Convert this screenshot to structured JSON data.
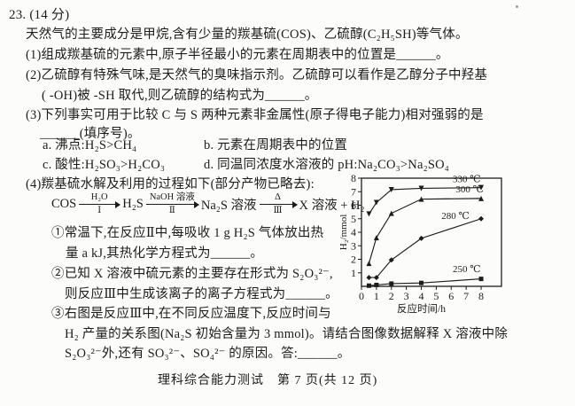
{
  "colors": {
    "ink": "#1c1c1c",
    "paper": "#fcfcfa"
  },
  "header": {
    "number": "23.",
    "score": "(14 分)"
  },
  "body": {
    "intro": "天然气的主要成分是甲烷,含有少量的羰基硫(COS)、乙硫醇(C₂H₅SH)等气体。",
    "q1": "(1)组成羰基硫的元素中,原子半径最小的元素在周期表中的位置是______。",
    "q2_line1": "(2)乙硫醇有特殊气味,是天然气的臭味指示剂。乙硫醇可以看作是乙醇分子中羟基",
    "q2_line2": "( -OH)被 -SH 取代,则乙硫醇的结构式为______。",
    "q3_line1": "(3)下列事实可用于比较 C 与 S 两种元素非金属性(原子得电子能力)相对强弱的是",
    "q3_line2": "______(填序号)。",
    "q3_options": {
      "a": "a. 沸点:H₂S>CH₄",
      "b": "b. 元素在周期表中的位置",
      "c": "c. 酸性:H₂SO₃>H₂CO₃",
      "d": "d. 同温同浓度水溶液的 pH:Na₂CO₃>Na₂SO₄"
    },
    "q4_intro": "(4)羰基硫水解及利用的过程如下(部分产物已略去):",
    "scheme": {
      "start": "COS",
      "step1": {
        "above": "H₂O",
        "below": "Ⅰ"
      },
      "mid1": "H₂S",
      "step2": {
        "above": "NaOH 溶液",
        "below": "Ⅱ"
      },
      "mid2": "Na₂S 溶液",
      "step3": {
        "above": "Δ",
        "below": "Ⅲ"
      },
      "end": "X 溶液 + H₂"
    },
    "q4_sub1_line1": "①常温下,在反应Ⅱ中,每吸收 1 g H₂S 气体放出热",
    "q4_sub1_line2": "量 a kJ,其热化学方程式为______。",
    "q4_sub2_line1": "②已知 X 溶液中硫元素的主要存在形式为 S₂O₃²⁻,",
    "q4_sub2_line2": "则反应Ⅲ中生成该离子的离子方程式为______。",
    "q4_sub3_line1": "③右图是反应Ⅲ中,在不同反应温度下,反应时间与",
    "q4_sub3_line2": "H₂ 产量的关系图(Na₂S 初始含量为 3 mmol)。请结合图像数据解释 X 溶液中除",
    "q4_sub3_line3": "S₂O₃²⁻外,还有 SO₃²⁻、SO₄²⁻ 的原因。答:______。"
  },
  "footer": {
    "text": "理科综合能力测试　第 7 页(共 12 页)"
  },
  "chart_data": {
    "type": "line",
    "title": "",
    "xlabel": "反应时间/h",
    "ylabel": "H₂/mmol",
    "x": [
      0.5,
      1,
      2,
      4,
      8
    ],
    "series": [
      {
        "name": "330 ℃",
        "marker": "triangle-down",
        "values": [
          5.35,
          6.2,
          7.15,
          7.25,
          7.3
        ],
        "label_at": [
          6.1,
          7.7
        ]
      },
      {
        "name": "300 ℃",
        "marker": "triangle-up",
        "values": [
          1.7,
          3.6,
          5.4,
          6.45,
          6.5
        ],
        "label_at": [
          6.3,
          6.95
        ]
      },
      {
        "name": "280 ℃",
        "marker": "diamond",
        "values": [
          0.65,
          0.65,
          1.95,
          3.55,
          5.0
        ],
        "label_at": [
          5.35,
          5.0
        ]
      },
      {
        "name": "250 ℃",
        "marker": "square",
        "values": [
          0.05,
          0.1,
          0.2,
          0.25,
          0.55
        ],
        "label_at": [
          6.1,
          1.05
        ]
      }
    ],
    "xlim": [
      0,
      9.36
    ],
    "ylim": [
      0,
      8
    ],
    "x_ticks": [
      0,
      1,
      2,
      3,
      4,
      5,
      6,
      7,
      8
    ],
    "y_ticks": [
      1,
      2,
      3,
      4,
      5,
      6,
      7,
      8
    ],
    "grid": false,
    "frame": "box",
    "legend_position": "inline-labels"
  }
}
